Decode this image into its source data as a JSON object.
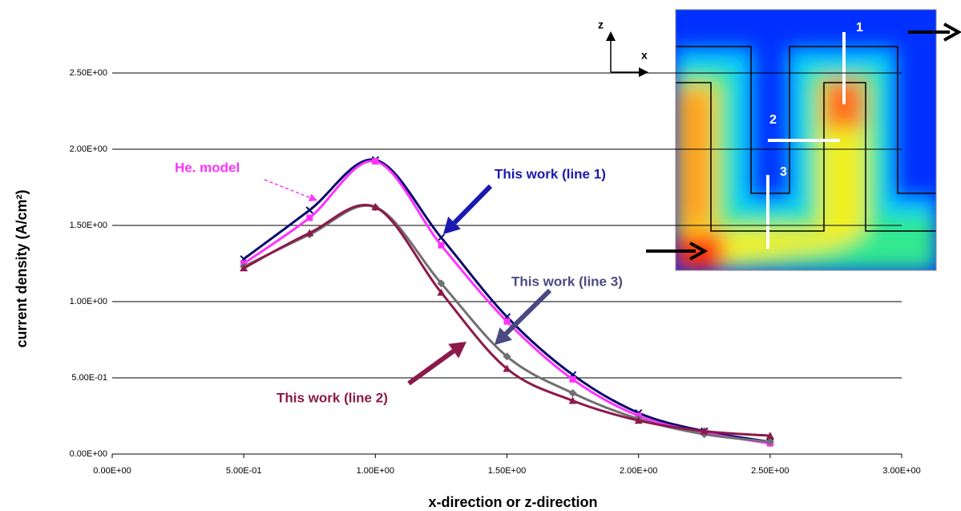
{
  "chart_data": {
    "type": "line",
    "x_label": "x-direction or z-direction",
    "y_label": "current density (A/cm²)",
    "x": [
      0.5,
      0.75,
      1.0,
      1.25,
      1.5,
      1.75,
      2.0,
      2.25,
      2.5
    ],
    "series": [
      {
        "name": "This work (line 1)",
        "color": "#0a0a6e",
        "marker": "x",
        "label_color": "#1a1ab0",
        "values": [
          1.28,
          1.6,
          1.93,
          1.42,
          0.9,
          0.52,
          0.27,
          0.15,
          0.08
        ]
      },
      {
        "name": "He. model",
        "color": "#ff33ff",
        "marker": "square",
        "label_color": "#ff33ff",
        "values": [
          1.25,
          1.55,
          1.92,
          1.37,
          0.87,
          0.49,
          0.25,
          0.14,
          0.07
        ]
      },
      {
        "name": "This work (line 3)",
        "color": "#707070",
        "marker": "diamond",
        "label_color": "#4a4a80",
        "values": [
          1.23,
          1.44,
          1.62,
          1.12,
          0.64,
          0.4,
          0.23,
          0.13,
          0.08
        ]
      },
      {
        "name": "This work (line 2)",
        "color": "#8b1a4a",
        "marker": "triangle",
        "label_color": "#8b1a4a",
        "values": [
          1.22,
          1.45,
          1.62,
          1.06,
          0.56,
          0.35,
          0.22,
          0.15,
          0.12
        ]
      }
    ],
    "xlim": [
      0,
      3
    ],
    "ylim": [
      0,
      2.5
    ],
    "xticks": [
      {
        "value": 0,
        "label": "0.00E+00"
      },
      {
        "value": 0.5,
        "label": "5.00E-01"
      },
      {
        "value": 1,
        "label": "1.00E+00"
      },
      {
        "value": 1.5,
        "label": "1.50E+00"
      },
      {
        "value": 2,
        "label": "2.00E+00"
      },
      {
        "value": 2.5,
        "label": "2.50E+00"
      },
      {
        "value": 3,
        "label": "3.00E+00"
      }
    ],
    "yticks": [
      {
        "value": 0,
        "label": "0.00E+00"
      },
      {
        "value": 0.5,
        "label": "5.00E-01"
      },
      {
        "value": 1,
        "label": "1.00E+00"
      },
      {
        "value": 1.5,
        "label": "1.50E+00"
      },
      {
        "value": 2,
        "label": "2.00E+00"
      },
      {
        "value": 2.5,
        "label": "2.50E+00"
      }
    ],
    "grid": true
  },
  "inset": {
    "axis_labels": [
      "z",
      "x"
    ],
    "line_labels": [
      "1",
      "2",
      "3"
    ]
  }
}
